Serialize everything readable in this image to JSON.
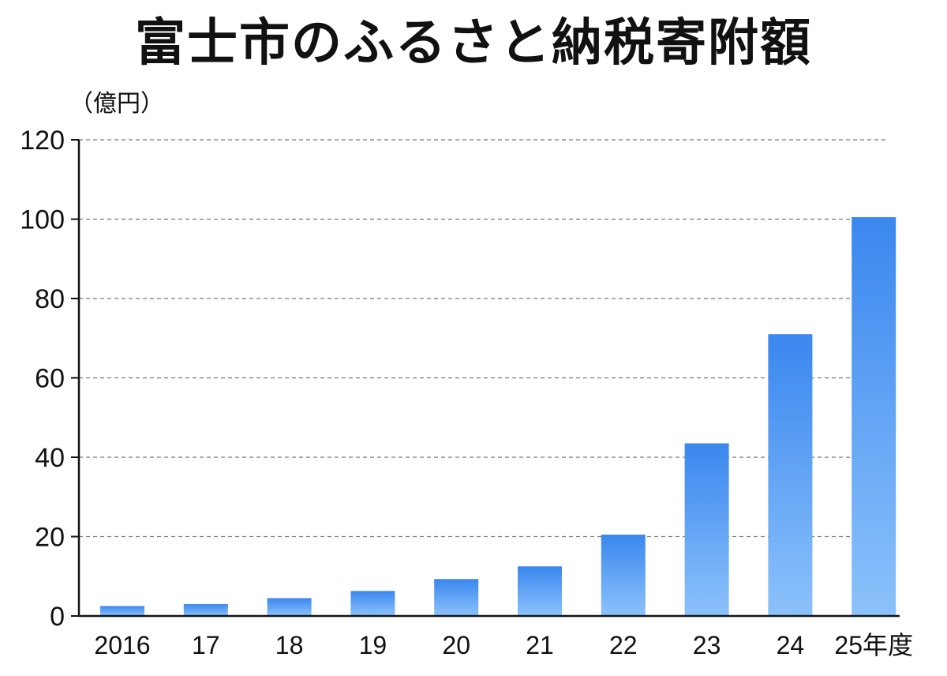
{
  "chart_data": {
    "type": "bar",
    "title": "富士市のふるさと納税寄附額",
    "ylabel": "（億円）",
    "xlabel": "",
    "categories": [
      "2016",
      "17",
      "18",
      "19",
      "20",
      "21",
      "22",
      "23",
      "24",
      "25年度"
    ],
    "values": [
      2.5,
      3,
      4.5,
      6.3,
      9.3,
      12.5,
      20.5,
      43.5,
      71,
      100.5
    ],
    "yticks": [
      0,
      20,
      40,
      60,
      80,
      100,
      120
    ],
    "ylim": [
      0,
      120
    ],
    "grid": true,
    "colors": {
      "bar_top": "#3a87ef",
      "bar_bottom": "#8cc2fb",
      "grid": "#777777",
      "axis": "#111111"
    }
  }
}
